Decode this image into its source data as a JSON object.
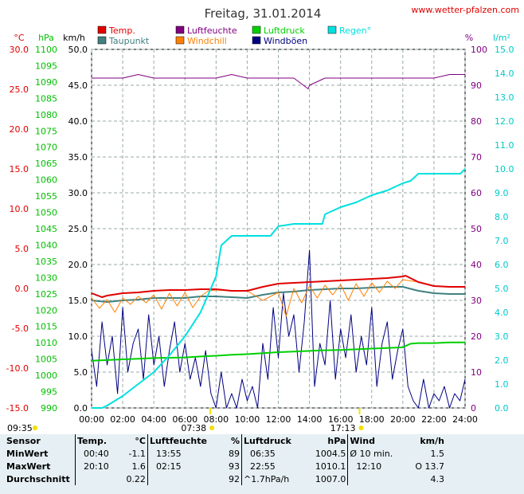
{
  "header": {
    "title": "Freitag, 31.01.2014",
    "site": "www.wetter-pfalzen.com"
  },
  "legend": [
    {
      "label": "Temp.",
      "color": "#e00000"
    },
    {
      "label": "Luftfeuchte",
      "color": "#800080"
    },
    {
      "label": "Luftdruck",
      "color": "#00d000"
    },
    {
      "label": "Regen°",
      "color": "#00e0e0"
    },
    {
      "label": "Taupunkt",
      "color": "#408080"
    },
    {
      "label": "Windchill",
      "color": "#ff8000"
    },
    {
      "label": "Windböen",
      "color": "#000080"
    }
  ],
  "axes": {
    "units": {
      "temp": "°C",
      "press": "hPa",
      "wind": "km/h",
      "hum": "%",
      "rain": "l/m²"
    },
    "temp_ticks": [
      "30.0",
      "25.0",
      "20.0",
      "15.0",
      "10.0",
      "5.0",
      "0.0",
      "-5.0",
      "-10.0",
      "-15.0"
    ],
    "press_ticks": [
      "1100",
      "1095",
      "1090",
      "1085",
      "1080",
      "1075",
      "1070",
      "1065",
      "1060",
      "1055",
      "1050",
      "1045",
      "1040",
      "1035",
      "1030",
      "1025",
      "1020",
      "1015",
      "1010",
      "1005",
      "1000",
      "995",
      "990"
    ],
    "wind_ticks": [
      "50.0",
      "45.0",
      "40.0",
      "35.0",
      "30.0",
      "25.0",
      "20.0",
      "15.0",
      "10.0",
      "5.0",
      "0.0"
    ],
    "hum_ticks": [
      "100",
      "90",
      "80",
      "70",
      "60",
      "50",
      "40",
      "30",
      "20",
      "10",
      "0"
    ],
    "rain_ticks": [
      "15.0",
      "14.0",
      "13.0",
      "12.0",
      "11.0",
      "10.0",
      "9.0",
      "8.0",
      "7.0",
      "6.0",
      "5.0",
      "4.0",
      "3.0",
      "2.0",
      "1.0",
      "0.0"
    ],
    "x_ticks": [
      "00:00",
      "02:00",
      "04:00",
      "06:00",
      "08:00",
      "10:00",
      "12:00",
      "14:00",
      "16:00",
      "18:00",
      "20:00",
      "22:00",
      "24:00"
    ],
    "sun_labels": [
      {
        "time": "09:35",
        "hour": null
      },
      {
        "time": "07:38",
        "hour": 7.63
      },
      {
        "time": "17:13",
        "hour": 17.22
      }
    ]
  },
  "chart_data": {
    "type": "line",
    "title": "Freitag, 31.01.2014",
    "x_unit": "hour",
    "xlim": [
      0,
      24
    ],
    "grid": true,
    "legend_position": "top",
    "series": [
      {
        "name": "Temp.",
        "axis": "temp",
        "color": "#e00000",
        "x": [
          0,
          0.67,
          1,
          2,
          3,
          4,
          5,
          6,
          7,
          8,
          9,
          10,
          11,
          12,
          13,
          14,
          15,
          16,
          17,
          18,
          19,
          20,
          20.17,
          21,
          22,
          23,
          24
        ],
        "values": [
          -0.6,
          -1.1,
          -0.9,
          -0.6,
          -0.5,
          -0.3,
          -0.2,
          -0.2,
          -0.1,
          -0.1,
          -0.3,
          -0.3,
          0.2,
          0.6,
          0.7,
          0.8,
          0.9,
          1.0,
          1.1,
          1.2,
          1.3,
          1.5,
          1.6,
          0.8,
          0.3,
          0.2,
          0.2
        ]
      },
      {
        "name": "Taupunkt",
        "axis": "temp",
        "color": "#408080",
        "x": [
          0,
          1,
          2,
          3,
          4,
          5,
          6,
          7,
          8,
          9,
          10,
          11,
          12,
          13,
          14,
          15,
          16,
          17,
          18,
          19,
          20,
          21,
          22,
          23,
          24
        ],
        "values": [
          -1.5,
          -1.7,
          -1.5,
          -1.4,
          -1.2,
          -1.2,
          -1.2,
          -1.0,
          -1.0,
          -1.1,
          -1.2,
          -0.8,
          -0.5,
          -0.4,
          -0.2,
          -0.1,
          0.0,
          0.0,
          0.1,
          0.2,
          0.2,
          -0.3,
          -0.6,
          -0.7,
          -0.7
        ]
      },
      {
        "name": "Windchill",
        "axis": "temp",
        "color": "#ff8000",
        "x": [
          0,
          0.5,
          1,
          1.5,
          2,
          2.5,
          3,
          3.5,
          4,
          4.5,
          5,
          5.5,
          6,
          6.5,
          7,
          7.5,
          8,
          9,
          10,
          11,
          12,
          12.5,
          13,
          13.5,
          14,
          14.5,
          15,
          15.5,
          16,
          16.5,
          17,
          17.5,
          18,
          18.5,
          19,
          19.5,
          20,
          21,
          22,
          23,
          24
        ],
        "values": [
          -1.2,
          -2.5,
          -1.4,
          -3.0,
          -1.2,
          -2.0,
          -1.0,
          -1.8,
          -0.8,
          -2.6,
          -0.6,
          -2.2,
          -0.5,
          -2.4,
          -1.0,
          -0.3,
          -0.2,
          -0.3,
          -0.3,
          -1.5,
          -0.5,
          -3.5,
          0.0,
          -1.8,
          0.3,
          -1.2,
          0.4,
          -0.8,
          0.5,
          -1.5,
          0.6,
          -1.0,
          0.7,
          -0.5,
          0.9,
          0.0,
          1.1,
          0.8,
          0.3,
          0.2,
          0.2
        ]
      },
      {
        "name": "Luftfeuchte",
        "axis": "hum",
        "color": "#800080",
        "x": [
          0,
          1,
          2,
          3,
          4,
          5,
          6,
          7,
          8,
          9,
          10,
          11,
          12,
          13,
          13.92,
          14,
          15,
          16,
          17,
          18,
          19,
          20,
          21,
          22,
          23,
          24
        ],
        "values": [
          92,
          92,
          92,
          93,
          92,
          92,
          92,
          92,
          92,
          93,
          92,
          92,
          92,
          92,
          89,
          90,
          92,
          92,
          92,
          92,
          92,
          92,
          92,
          92,
          93,
          93
        ]
      },
      {
        "name": "Luftdruck",
        "axis": "press",
        "color": "#00d000",
        "x": [
          0,
          1,
          2,
          3,
          4,
          5,
          6,
          7,
          8,
          9,
          10,
          11,
          12,
          13,
          14,
          15,
          16,
          17,
          18,
          19,
          20,
          20.5,
          21,
          22,
          23,
          24
        ],
        "values": [
          1004.5,
          1004.7,
          1004.9,
          1005.1,
          1005.3,
          1005.4,
          1005.5,
          1005.8,
          1006.0,
          1006.3,
          1006.5,
          1006.8,
          1007.1,
          1007.3,
          1007.5,
          1007.7,
          1007.8,
          1008.0,
          1008.2,
          1008.4,
          1008.6,
          1009.7,
          1009.9,
          1009.9,
          1010.1,
          1010.1
        ]
      },
      {
        "name": "Regen°",
        "axis": "rain",
        "color": "#00e0e0",
        "x": [
          0,
          0.67,
          1,
          2,
          3,
          4,
          5,
          6,
          7,
          8,
          8.33,
          9,
          10,
          11,
          11.5,
          12,
          13,
          14,
          14.83,
          15,
          16,
          17,
          18,
          19,
          20,
          20.5,
          21,
          22,
          23,
          23.7,
          24
        ],
        "values": [
          0,
          0,
          0.1,
          0.5,
          1.0,
          1.5,
          2.2,
          3.0,
          4.0,
          5.5,
          6.8,
          7.2,
          7.2,
          7.2,
          7.2,
          7.6,
          7.7,
          7.7,
          7.7,
          8.1,
          8.4,
          8.6,
          8.9,
          9.1,
          9.4,
          9.5,
          9.8,
          9.8,
          9.8,
          9.8,
          10.0
        ]
      },
      {
        "name": "Windböen",
        "axis": "wind",
        "color": "#000080",
        "x": [
          0,
          0.33,
          0.67,
          1,
          1.33,
          1.67,
          2,
          2.33,
          2.67,
          3,
          3.33,
          3.67,
          4,
          4.33,
          4.67,
          5,
          5.33,
          5.67,
          6,
          6.33,
          6.67,
          7,
          7.33,
          7.67,
          8,
          8.33,
          8.67,
          9,
          9.33,
          9.67,
          10,
          10.33,
          10.67,
          11,
          11.33,
          11.67,
          12,
          12.33,
          12.67,
          13,
          13.33,
          13.67,
          14,
          14.33,
          14.67,
          15,
          15.33,
          15.67,
          16,
          16.33,
          16.67,
          17,
          17.33,
          17.67,
          18,
          18.33,
          18.67,
          19,
          19.33,
          19.67,
          20,
          20.33,
          20.67,
          21,
          21.33,
          21.67,
          22,
          22.33,
          22.67,
          23,
          23.33,
          23.67,
          24
        ],
        "values": [
          8,
          3,
          12,
          6,
          10,
          2,
          14,
          5,
          9,
          11,
          4,
          13,
          6,
          10,
          3,
          8,
          12,
          5,
          9,
          4,
          7,
          3,
          8,
          2,
          0,
          5,
          0,
          2,
          0,
          4,
          1,
          3,
          0,
          9,
          4,
          14,
          7,
          16,
          10,
          13,
          5,
          12,
          22,
          3,
          9,
          6,
          15,
          4,
          11,
          7,
          13,
          5,
          10,
          6,
          14,
          3,
          9,
          12,
          4,
          8,
          11,
          3,
          1,
          0,
          4,
          0,
          2,
          1,
          3,
          0,
          2,
          1,
          4
        ]
      }
    ]
  },
  "stats": {
    "headers": [
      "Sensor",
      "Temp.",
      "°C",
      "Luftfeuchte",
      "%",
      "Luftdruck",
      "hPa",
      "Wind",
      "km/h"
    ],
    "rows": [
      {
        "label": "MinWert",
        "t_time": "00:40",
        "t_val": "-1.1",
        "h_time": "13:55",
        "h_val": "89",
        "p_time": "06:35",
        "p_val": "1004.5",
        "w_desc": "Ø 10 min.",
        "w_val": "1.5"
      },
      {
        "label": "MaxWert",
        "t_time": "20:10",
        "t_val": "1.6",
        "h_time": "02:15",
        "h_val": "93",
        "p_time": "22:55",
        "p_val": "1010.1",
        "w_desc": "12:10",
        "w_val": "O 13.7"
      },
      {
        "label": "Durchschnitt",
        "t_time": "",
        "t_val": "0.22",
        "h_time": "",
        "h_val": "92",
        "p_time": "^1.7hPa/h",
        "p_val": "1007.0",
        "w_desc": "",
        "w_val": "4.3"
      }
    ]
  }
}
